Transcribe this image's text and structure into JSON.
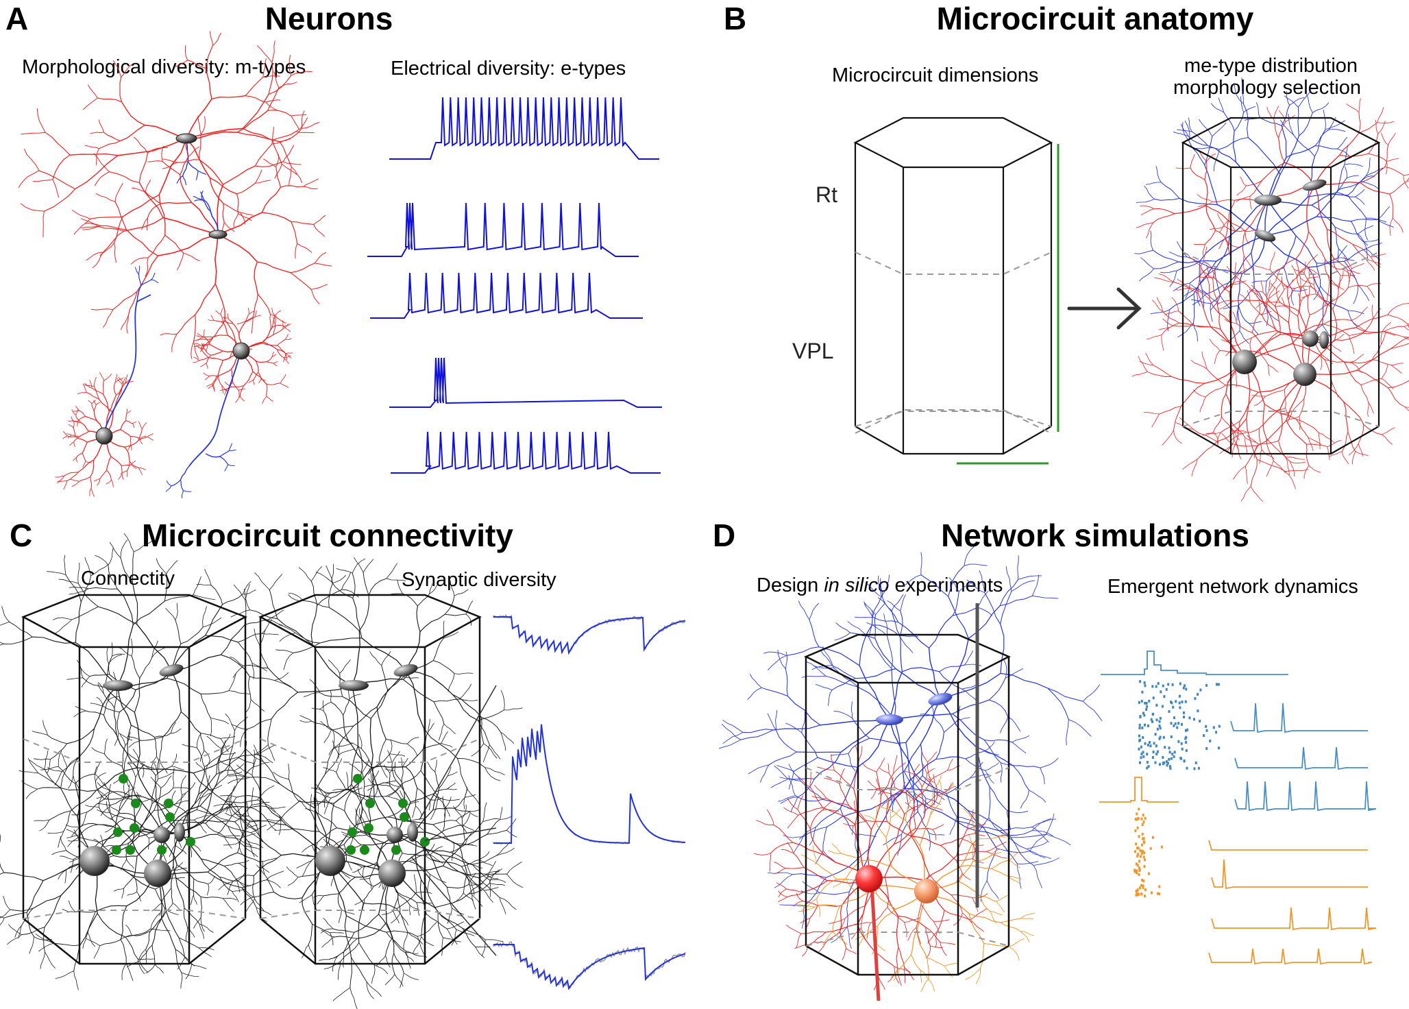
{
  "panels": {
    "A": {
      "letter": "A",
      "title": "Neurons",
      "subtitle_left": "Morphological diversity: m-types",
      "subtitle_right": "Electrical diversity: e-types"
    },
    "B": {
      "letter": "B",
      "title": "Microcircuit anatomy",
      "subtitle_left": "Microcircuit dimensions",
      "subtitle_right_line1": "me-type distribution",
      "subtitle_right_line2": "morphology selection",
      "label_top_layer": "Rt",
      "label_bottom_layer": "VPL"
    },
    "C": {
      "letter": "C",
      "title": "Microcircuit connectivity",
      "subtitle_left": "Connectity",
      "subtitle_right": "Synaptic diversity"
    },
    "D": {
      "letter": "D",
      "title": "Network simulations",
      "subtitle_left_pre": "Design ",
      "subtitle_left_italic": "in silico",
      "subtitle_left_post": " experiments",
      "subtitle_right": "Emergent network dynamics"
    }
  },
  "colors": {
    "dendrite_red": "#ee2222",
    "axon_blue": "#2233dd",
    "trace_blue": "#1111dd",
    "neurite_black": "#1a1a1a",
    "synapse_green": "#1a8a1a",
    "dimension_green": "#2a9a2a",
    "sim_blue": "#4a8ec4",
    "sim_orange": "#f0962a",
    "recorded_gray": "#999999"
  },
  "icons": {
    "arrow": "right-arrow-icon",
    "electrode": "electrode-icon"
  }
}
